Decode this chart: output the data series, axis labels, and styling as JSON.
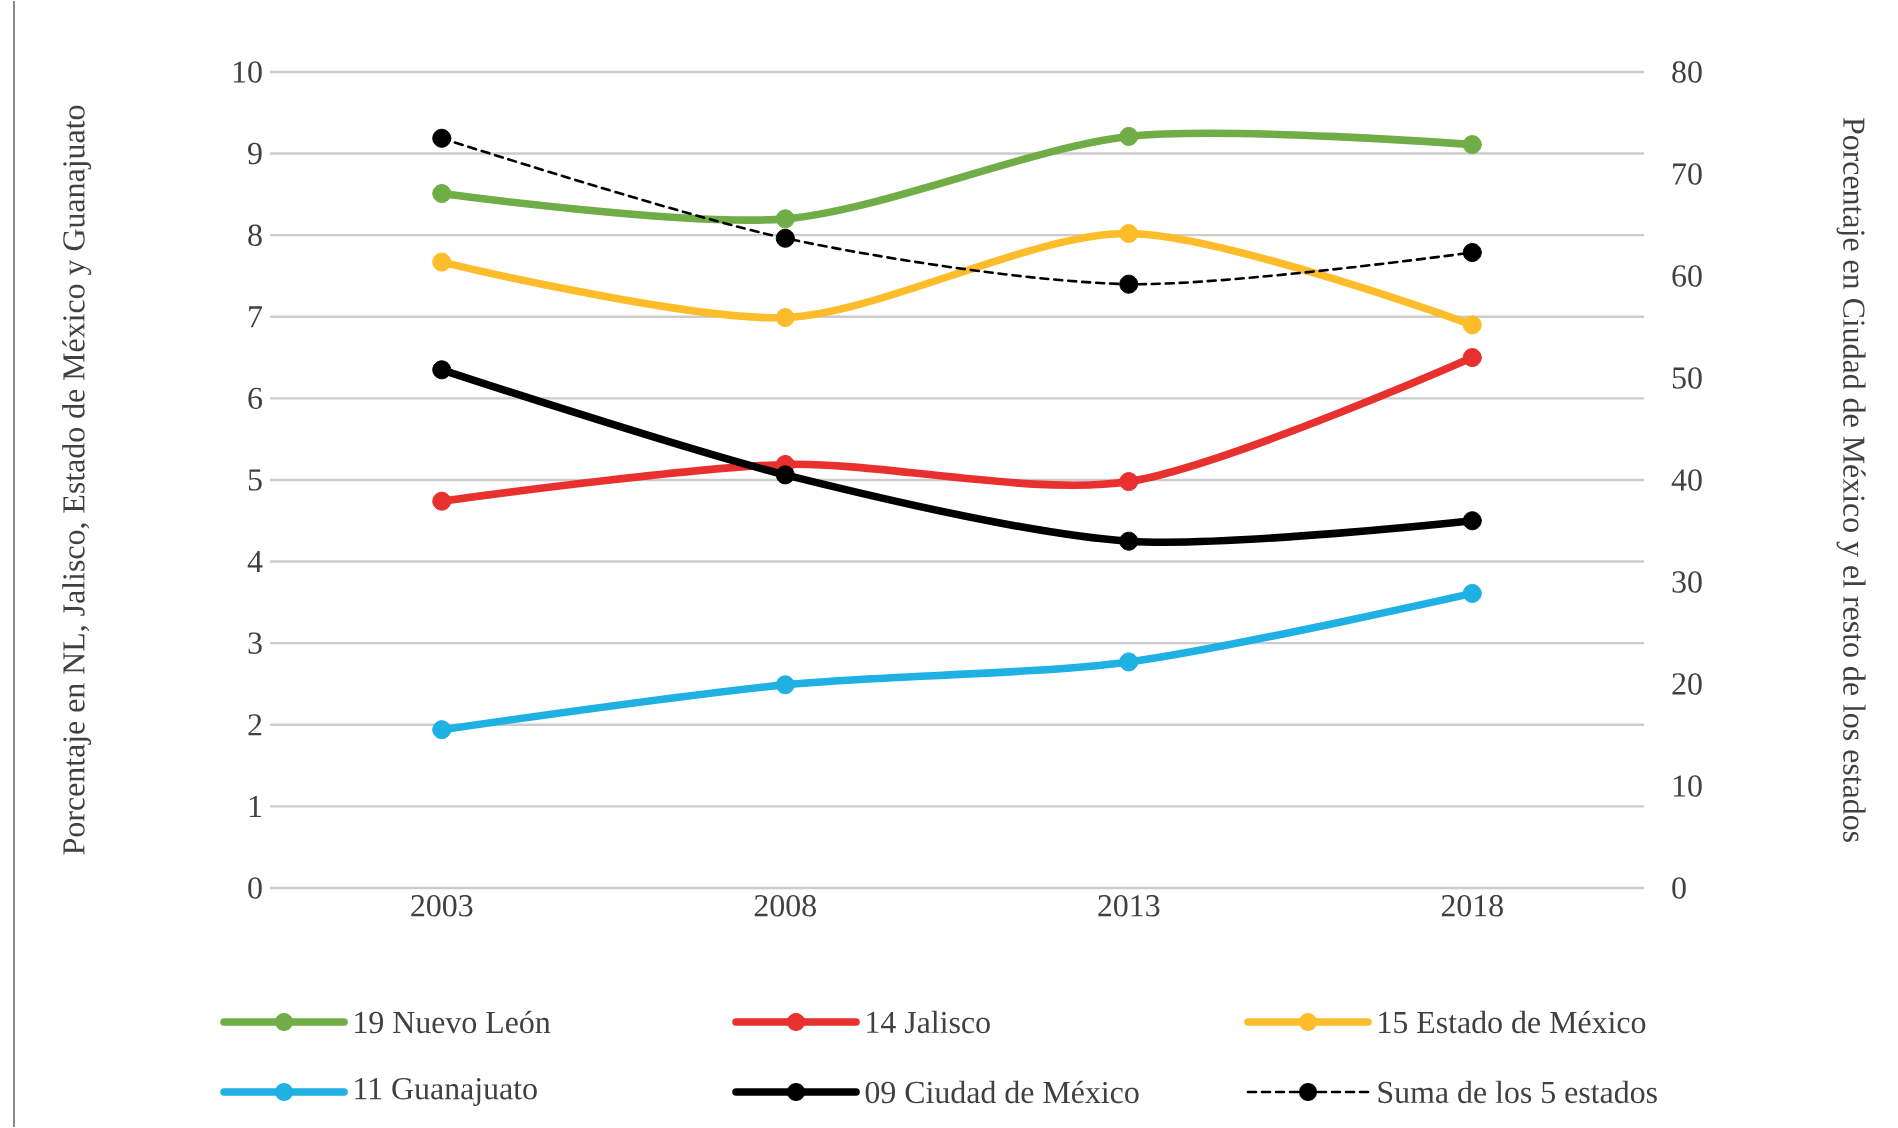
{
  "chart_data": {
    "type": "line",
    "categories": [
      "2003",
      "2008",
      "2013",
      "2018"
    ],
    "ylabel": "Porcentaje en NL, Jalisco, Estado de México y Guanajuato",
    "y2label": "Porcentaje en Ciudad de México y el resto de los estados",
    "ylim": [
      0,
      10
    ],
    "yticks": [
      0,
      1,
      2,
      3,
      4,
      5,
      6,
      7,
      8,
      9,
      10
    ],
    "y2lim": [
      0,
      80
    ],
    "y2ticks": [
      0,
      10,
      20,
      30,
      40,
      50,
      60,
      70,
      80
    ],
    "grid": "y",
    "legend": "bottom",
    "marker": "circle",
    "series": [
      {
        "name": "19 Nuevo León",
        "color": "#70ad47",
        "values": [
          8.51,
          8.2,
          9.21,
          9.11
        ]
      },
      {
        "name": "14 Jalisco",
        "color": "#e8302e",
        "values": [
          4.74,
          5.19,
          4.98,
          6.5
        ]
      },
      {
        "name": "15 Estado de México",
        "color": "#fdbd2a",
        "values": [
          7.67,
          6.99,
          8.02,
          6.9
        ]
      },
      {
        "name": "11 Guanajuato",
        "color": "#1fb0e4",
        "values": [
          1.94,
          2.49,
          2.77,
          3.61
        ]
      },
      {
        "name": "09 Ciudad de México",
        "color": "#000000",
        "axis": "y2",
        "values": [
          50.8,
          40.5,
          34.0,
          36.0
        ]
      },
      {
        "name": "Suma de los 5 estados",
        "color": "#000000",
        "axis": "y2",
        "line_style": "dashed",
        "values": [
          73.5,
          63.7,
          59.2,
          62.3
        ]
      }
    ]
  }
}
